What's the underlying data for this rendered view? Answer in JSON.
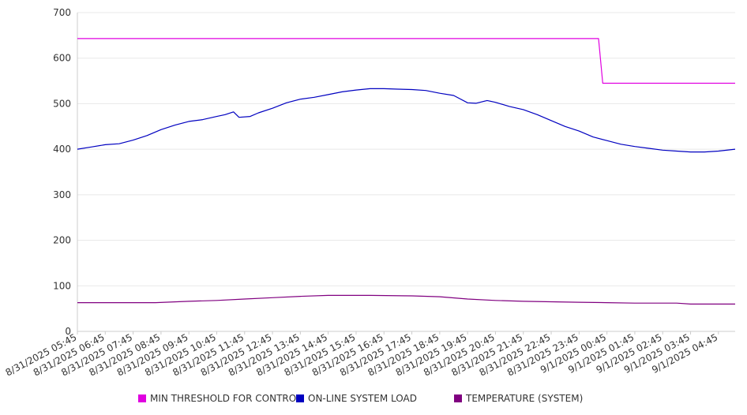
{
  "chart_data": {
    "type": "line",
    "title": "",
    "xlabel": "",
    "ylabel": "",
    "ylim": [
      0,
      700
    ],
    "yticks": [
      0,
      100,
      200,
      300,
      400,
      500,
      600,
      700
    ],
    "grid": true,
    "legend_position": "bottom",
    "x": [
      "8/31/2025 05:45",
      "8/31/2025 06:45",
      "8/31/2025 07:45",
      "8/31/2025 08:45",
      "8/31/2025 09:45",
      "8/31/2025 10:45",
      "8/31/2025 11:45",
      "8/31/2025 12:45",
      "8/31/2025 13:45",
      "8/31/2025 14:45",
      "8/31/2025 15:45",
      "8/31/2025 16:45",
      "8/31/2025 17:45",
      "8/31/2025 18:45",
      "8/31/2025 19:45",
      "8/31/2025 20:45",
      "8/31/2025 21:45",
      "8/31/2025 22:45",
      "8/31/2025 23:45",
      "9/1/2025 00:45",
      "9/1/2025 01:45",
      "9/1/2025 02:45",
      "9/1/2025 03:45",
      "9/1/2025 04:45"
    ],
    "series": [
      {
        "name": "MIN THRESHOLD FOR CONTROL",
        "color": "#e000e0",
        "points": [
          [
            0,
            643
          ],
          [
            18.7,
            643
          ],
          [
            18.85,
            545
          ],
          [
            23.6,
            545
          ]
        ]
      },
      {
        "name": "ON-LINE SYSTEM LOAD",
        "color": "#0000c0",
        "points": [
          [
            0,
            400
          ],
          [
            0.5,
            405
          ],
          [
            1,
            410
          ],
          [
            1.5,
            412
          ],
          [
            2,
            420
          ],
          [
            2.5,
            430
          ],
          [
            3,
            443
          ],
          [
            3.5,
            453
          ],
          [
            4,
            461
          ],
          [
            4.5,
            465
          ],
          [
            5,
            472
          ],
          [
            5.3,
            476
          ],
          [
            5.6,
            482
          ],
          [
            5.8,
            470
          ],
          [
            6.2,
            472
          ],
          [
            6.5,
            480
          ],
          [
            7,
            490
          ],
          [
            7.5,
            502
          ],
          [
            8,
            510
          ],
          [
            8.5,
            514
          ],
          [
            9,
            520
          ],
          [
            9.5,
            526
          ],
          [
            10,
            530
          ],
          [
            10.5,
            533
          ],
          [
            11,
            533
          ],
          [
            11.5,
            532
          ],
          [
            12,
            531
          ],
          [
            12.5,
            529
          ],
          [
            13,
            523
          ],
          [
            13.5,
            518
          ],
          [
            14,
            502
          ],
          [
            14.3,
            501
          ],
          [
            14.7,
            507
          ],
          [
            15,
            503
          ],
          [
            15.5,
            494
          ],
          [
            16,
            487
          ],
          [
            16.5,
            476
          ],
          [
            17,
            463
          ],
          [
            17.5,
            450
          ],
          [
            18,
            440
          ],
          [
            18.5,
            427
          ],
          [
            19,
            419
          ],
          [
            19.5,
            411
          ],
          [
            20,
            406
          ],
          [
            20.5,
            402
          ],
          [
            21,
            398
          ],
          [
            21.5,
            396
          ],
          [
            22,
            394
          ],
          [
            22.5,
            394
          ],
          [
            23,
            396
          ],
          [
            23.6,
            400
          ]
        ]
      },
      {
        "name": "TEMPERATURE (SYSTEM)",
        "color": "#800080",
        "points": [
          [
            0,
            63
          ],
          [
            2.8,
            63
          ],
          [
            4,
            66
          ],
          [
            5,
            68
          ],
          [
            6,
            71
          ],
          [
            7,
            74
          ],
          [
            8,
            77
          ],
          [
            9,
            79
          ],
          [
            10.5,
            79
          ],
          [
            12,
            78
          ],
          [
            13,
            76
          ],
          [
            14,
            71
          ],
          [
            15,
            68
          ],
          [
            16,
            66
          ],
          [
            17,
            65
          ],
          [
            18,
            64
          ],
          [
            19,
            63
          ],
          [
            20,
            62
          ],
          [
            21.5,
            62
          ],
          [
            22,
            60
          ],
          [
            23.6,
            60
          ]
        ]
      }
    ]
  }
}
